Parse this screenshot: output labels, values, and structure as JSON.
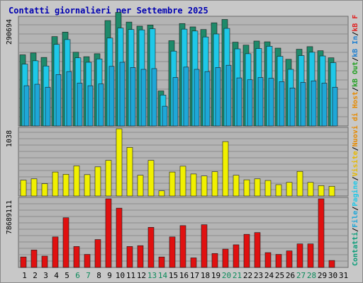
{
  "chart_data": {
    "type": "bar",
    "title": "Contatti giornalieri per Settembre 2025",
    "categories": [
      "1",
      "2",
      "3",
      "4",
      "5",
      "6",
      "7",
      "8",
      "9",
      "10",
      "11",
      "12",
      "13",
      "14",
      "15",
      "16",
      "17",
      "18",
      "19",
      "20",
      "21",
      "22",
      "23",
      "24",
      "25",
      "26",
      "27",
      "28",
      "29",
      "30",
      "31"
    ],
    "weekend_days": [
      "6",
      "7",
      "13",
      "14",
      "20",
      "21",
      "27",
      "28"
    ],
    "right_legend": [
      {
        "label": "Contatti",
        "color": "#0b9e7a"
      },
      {
        "label": "/",
        "color": "#000000"
      },
      {
        "label": "File",
        "color": "#1ea7d8"
      },
      {
        "label": "/",
        "color": "#000000"
      },
      {
        "label": "Pagine",
        "color": "#1ec8e8"
      },
      {
        "label": "/",
        "color": "#000000"
      },
      {
        "label": "Visite",
        "color": "#e6b800"
      },
      {
        "label": "/",
        "color": "#000000"
      },
      {
        "label": "Nuovi di Host",
        "color": "#e68a00"
      },
      {
        "label": "/",
        "color": "#000000"
      },
      {
        "label": "kB Out",
        "color": "#20a020"
      },
      {
        "label": "/",
        "color": "#000000"
      },
      {
        "label": "kB In",
        "color": "#1e7fd0"
      },
      {
        "label": "/",
        "color": "#000000"
      },
      {
        "label": "kB F",
        "color": "#e02020"
      }
    ],
    "panels": [
      {
        "ytick_label": "290694",
        "ylim": [
          0,
          290694
        ],
        "series": [
          {
            "name": "Contatti",
            "color": "#1e8a6a",
            "values": [
              191000,
              196000,
              184000,
              240000,
              252000,
              198000,
              186000,
              194000,
              283000,
              305000,
              279000,
              268000,
              271000,
              94000,
              229000,
              275000,
              266000,
              259000,
              277000,
              286000,
              225000,
              217000,
              228000,
              226000,
              209000,
              179000,
              206000,
              213000,
              202000,
              183000,
              0
            ]
          },
          {
            "name": "File",
            "color": "#1ec8e8",
            "values": [
              166000,
              175000,
              161000,
              219000,
              232000,
              183000,
              171000,
              180000,
              236000,
              263000,
              259000,
              258000,
              261000,
              83000,
              201000,
              260000,
              255000,
              239000,
              247000,
              262000,
              207000,
              194000,
              208000,
              214000,
              187000,
              152000,
              189000,
              198000,
              188000,
              170000,
              0
            ]
          },
          {
            "name": "Pagine",
            "color": "#1ea7d8",
            "values": [
              108000,
              112000,
              104000,
              138000,
              146000,
              115000,
              108000,
              113000,
              160000,
              171000,
              157000,
              152000,
              154000,
              53000,
              130000,
              158000,
              152000,
              146000,
              157000,
              163000,
              129000,
              124000,
              130000,
              128000,
              119000,
              102000,
              117000,
              121000,
              115000,
              104000,
              0
            ]
          }
        ]
      },
      {
        "ytick_label": "1038",
        "ylim": [
          0,
          1038
        ],
        "series": [
          {
            "name": "Visite",
            "color": "#f0f000",
            "values": [
              245,
              265,
              190,
              370,
              335,
              465,
              330,
              450,
              550,
              1038,
              750,
              320,
              550,
              80,
              370,
              460,
              340,
              310,
              375,
              840,
              320,
              250,
              265,
              240,
              175,
              210,
              380,
              210,
              160,
              150,
              0
            ]
          }
        ]
      },
      {
        "ytick_label": "78689111",
        "ylim": [
          0,
          78689111
        ],
        "series": [
          {
            "name": "kB F",
            "color": "#e01010",
            "values": [
              12000000,
              20000000,
              13000000,
              35000000,
              57000000,
              24000000,
              15000000,
              32000000,
              78689111,
              68000000,
              24000000,
              25000000,
              46000000,
              12000000,
              35000000,
              48000000,
              11000000,
              49000000,
              16000000,
              21000000,
              26000000,
              38000000,
              40000000,
              17000000,
              15000000,
              19000000,
              27000000,
              27000000,
              78689111,
              8000000,
              0
            ]
          }
        ]
      }
    ]
  }
}
